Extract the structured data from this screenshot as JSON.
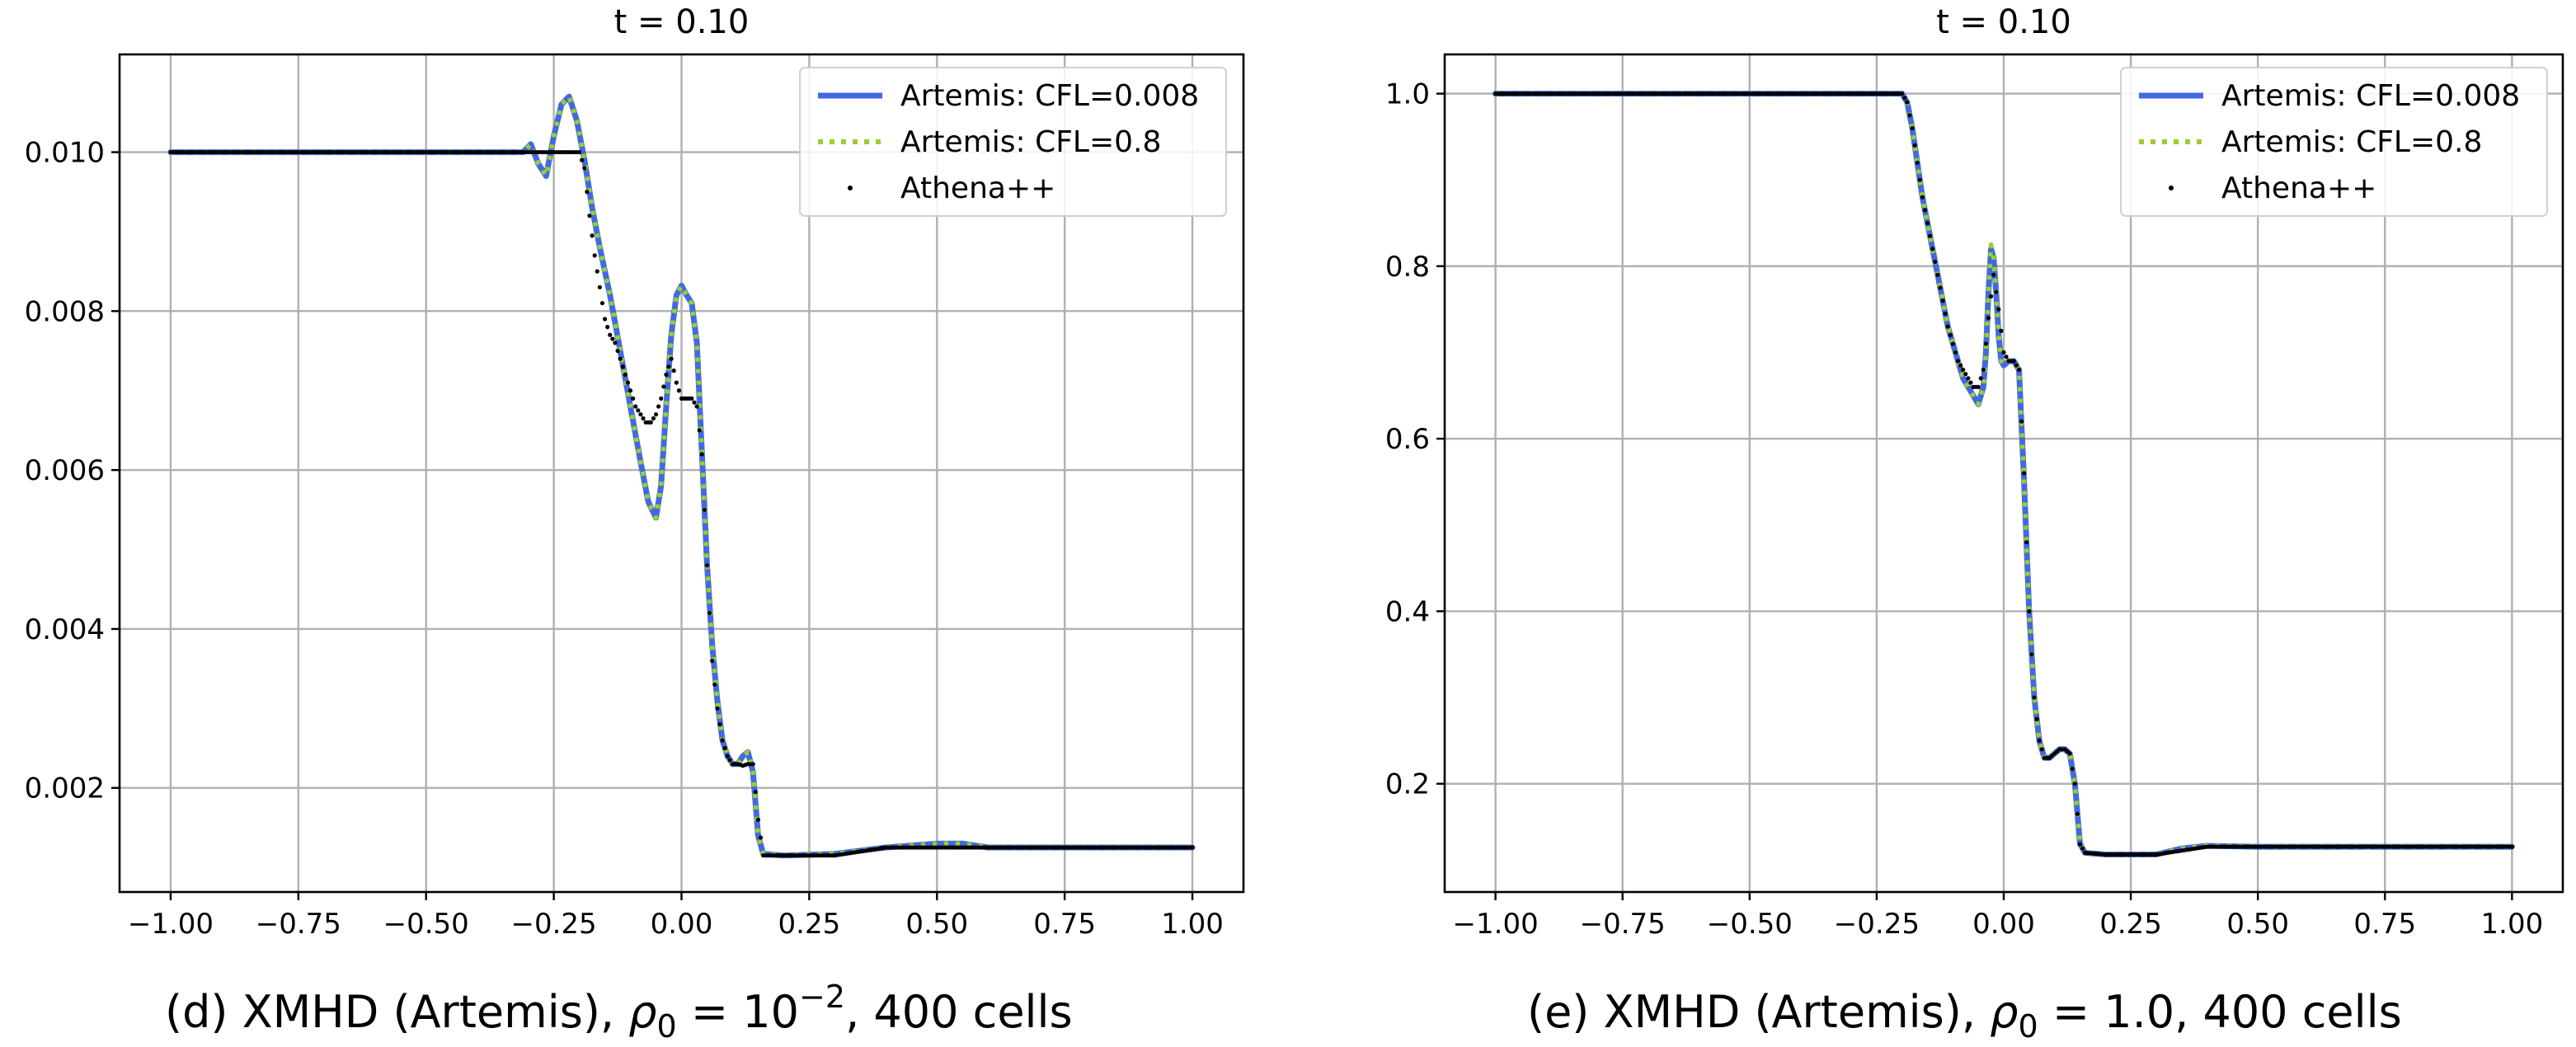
{
  "colors": {
    "artemis_low": "#4169e1",
    "artemis_high": "#9acd32",
    "athena": "#000000"
  },
  "chart_data": [
    {
      "type": "line",
      "title": "t = 0.10",
      "caption": {
        "prefix": "(d) XMHD (Artemis), ",
        "symbol": "ρ",
        "sub": "0",
        "eq": " = 10",
        "sup": "−2",
        "suffix": ", 400 cells"
      },
      "xlim": [
        -1.1,
        1.1
      ],
      "ylim": [
        0.00069,
        0.01123
      ],
      "xticks": [
        -1.0,
        -0.75,
        -0.5,
        -0.25,
        0.0,
        0.25,
        0.5,
        0.75,
        1.0
      ],
      "xtick_labels": [
        "−1.00",
        "−0.75",
        "−0.50",
        "−0.25",
        "0.00",
        "0.25",
        "0.50",
        "0.75",
        "1.00"
      ],
      "yticks": [
        0.002,
        0.004,
        0.006,
        0.008,
        0.01
      ],
      "ytick_labels": [
        "0.002",
        "0.004",
        "0.006",
        "0.008",
        "0.010"
      ],
      "legend": [
        "Artemis: CFL=0.008",
        "Artemis: CFL=0.8",
        "Athena++"
      ],
      "series": [
        {
          "name": "Artemis: CFL=0.008",
          "style": "solid",
          "x": [
            -1.0,
            -0.35,
            -0.31,
            -0.295,
            -0.28,
            -0.265,
            -0.25,
            -0.235,
            -0.22,
            -0.205,
            -0.19,
            -0.175,
            -0.16,
            -0.14,
            -0.12,
            -0.1,
            -0.08,
            -0.065,
            -0.05,
            -0.04,
            -0.03,
            -0.02,
            -0.01,
            0.0,
            0.01,
            0.02,
            0.03,
            0.04,
            0.05,
            0.06,
            0.07,
            0.08,
            0.09,
            0.1,
            0.11,
            0.12,
            0.13,
            0.14,
            0.15,
            0.16,
            0.2,
            0.3,
            0.4,
            0.5,
            0.55,
            0.6,
            0.7,
            0.8,
            1.0
          ],
          "y": [
            0.01,
            0.01,
            0.01,
            0.0101,
            0.00985,
            0.0097,
            0.0102,
            0.0106,
            0.0107,
            0.0104,
            0.0099,
            0.0093,
            0.0088,
            0.0082,
            0.0075,
            0.0068,
            0.0061,
            0.0056,
            0.0054,
            0.0058,
            0.0068,
            0.0077,
            0.0082,
            0.00832,
            0.0082,
            0.0081,
            0.0076,
            0.0062,
            0.0048,
            0.0038,
            0.0031,
            0.0026,
            0.0024,
            0.0023,
            0.0023,
            0.0024,
            0.00245,
            0.0022,
            0.0014,
            0.00117,
            0.00115,
            0.00117,
            0.00125,
            0.0013,
            0.0013,
            0.00125,
            0.00125,
            0.00125,
            0.00125
          ]
        },
        {
          "name": "Artemis: CFL=0.8",
          "style": "dotted",
          "x": [
            -1.0,
            -0.35,
            -0.31,
            -0.295,
            -0.28,
            -0.265,
            -0.25,
            -0.235,
            -0.22,
            -0.205,
            -0.19,
            -0.175,
            -0.16,
            -0.14,
            -0.12,
            -0.1,
            -0.08,
            -0.065,
            -0.05,
            -0.04,
            -0.03,
            -0.02,
            -0.01,
            0.0,
            0.01,
            0.02,
            0.03,
            0.04,
            0.05,
            0.06,
            0.07,
            0.08,
            0.09,
            0.1,
            0.11,
            0.12,
            0.13,
            0.14,
            0.15,
            0.16,
            0.2,
            0.3,
            0.4,
            0.5,
            0.55,
            0.6,
            0.7,
            0.8,
            1.0
          ],
          "y": [
            0.01,
            0.01,
            0.01,
            0.0101,
            0.00985,
            0.0097,
            0.0102,
            0.0106,
            0.0107,
            0.0104,
            0.0099,
            0.0093,
            0.0088,
            0.0082,
            0.0075,
            0.0068,
            0.0061,
            0.0056,
            0.0054,
            0.0058,
            0.0068,
            0.0077,
            0.0082,
            0.00832,
            0.0082,
            0.0081,
            0.0076,
            0.0062,
            0.0048,
            0.0038,
            0.0031,
            0.0026,
            0.0024,
            0.0023,
            0.0023,
            0.0024,
            0.00245,
            0.0022,
            0.0014,
            0.00117,
            0.00115,
            0.00117,
            0.00125,
            0.0013,
            0.0013,
            0.00125,
            0.00125,
            0.00125,
            0.00125
          ]
        },
        {
          "name": "Athena++",
          "style": "points",
          "x": [
            -1.0,
            -0.2,
            -0.19,
            -0.18,
            -0.17,
            -0.16,
            -0.15,
            -0.14,
            -0.13,
            -0.12,
            -0.11,
            -0.1,
            -0.09,
            -0.08,
            -0.07,
            -0.06,
            -0.05,
            -0.04,
            -0.03,
            -0.02,
            -0.01,
            0.0,
            0.01,
            0.02,
            0.03,
            0.04,
            0.05,
            0.06,
            0.07,
            0.08,
            0.09,
            0.1,
            0.11,
            0.12,
            0.13,
            0.14,
            0.15,
            0.16,
            0.18,
            0.3,
            0.4,
            0.5,
            0.7,
            1.0
          ],
          "y": [
            0.01,
            0.01,
            0.0098,
            0.0092,
            0.0087,
            0.0083,
            0.0079,
            0.0077,
            0.0076,
            0.0074,
            0.0072,
            0.007,
            0.0068,
            0.0067,
            0.0066,
            0.0066,
            0.0067,
            0.0069,
            0.0072,
            0.0074,
            0.0071,
            0.0069,
            0.0069,
            0.0069,
            0.0068,
            0.0062,
            0.0048,
            0.0036,
            0.003,
            0.0026,
            0.0024,
            0.0023,
            0.0023,
            0.00228,
            0.0023,
            0.0023,
            0.0016,
            0.00115,
            0.00115,
            0.00115,
            0.00125,
            0.00125,
            0.00125,
            0.00125
          ]
        }
      ]
    },
    {
      "type": "line",
      "title": "t = 0.10",
      "caption": {
        "prefix": "(e) XMHD (Artemis), ",
        "symbol": "ρ",
        "sub": "0",
        "eq": " = 1.0",
        "sup": "",
        "suffix": ", 400 cells"
      },
      "xlim": [
        -1.1,
        1.1
      ],
      "ylim": [
        0.0745,
        1.0455
      ],
      "xticks": [
        -1.0,
        -0.75,
        -0.5,
        -0.25,
        0.0,
        0.25,
        0.5,
        0.75,
        1.0
      ],
      "xtick_labels": [
        "−1.00",
        "−0.75",
        "−0.50",
        "−0.25",
        "0.00",
        "0.25",
        "0.50",
        "0.75",
        "1.00"
      ],
      "yticks": [
        0.2,
        0.4,
        0.6,
        0.8,
        1.0
      ],
      "ytick_labels": [
        "0.2",
        "0.4",
        "0.6",
        "0.8",
        "1.0"
      ],
      "legend": [
        "Artemis: CFL=0.008",
        "Artemis: CFL=0.8",
        "Athena++"
      ],
      "series": [
        {
          "name": "Artemis: CFL=0.008",
          "style": "solid",
          "x": [
            -1.0,
            -0.2,
            -0.19,
            -0.18,
            -0.17,
            -0.16,
            -0.15,
            -0.14,
            -0.13,
            -0.12,
            -0.11,
            -0.1,
            -0.09,
            -0.08,
            -0.07,
            -0.06,
            -0.05,
            -0.04,
            -0.035,
            -0.03,
            -0.025,
            -0.02,
            -0.015,
            -0.01,
            -0.005,
            0.0,
            0.01,
            0.02,
            0.03,
            0.04,
            0.05,
            0.06,
            0.07,
            0.08,
            0.09,
            0.1,
            0.11,
            0.12,
            0.13,
            0.14,
            0.15,
            0.16,
            0.2,
            0.3,
            0.35,
            0.4,
            0.5,
            0.7,
            1.0
          ],
          "y": [
            1.0,
            1.0,
            0.99,
            0.96,
            0.92,
            0.88,
            0.85,
            0.82,
            0.79,
            0.76,
            0.73,
            0.71,
            0.69,
            0.67,
            0.66,
            0.65,
            0.64,
            0.66,
            0.7,
            0.77,
            0.82,
            0.81,
            0.77,
            0.72,
            0.69,
            0.685,
            0.69,
            0.69,
            0.68,
            0.55,
            0.4,
            0.3,
            0.25,
            0.23,
            0.23,
            0.235,
            0.24,
            0.24,
            0.235,
            0.2,
            0.13,
            0.12,
            0.118,
            0.118,
            0.125,
            0.128,
            0.127,
            0.127,
            0.127
          ]
        },
        {
          "name": "Artemis: CFL=0.8",
          "style": "dotted",
          "x": [
            -1.0,
            -0.2,
            -0.19,
            -0.18,
            -0.17,
            -0.16,
            -0.15,
            -0.14,
            -0.13,
            -0.12,
            -0.11,
            -0.1,
            -0.09,
            -0.08,
            -0.07,
            -0.06,
            -0.05,
            -0.04,
            -0.035,
            -0.03,
            -0.025,
            -0.02,
            -0.015,
            -0.01,
            -0.005,
            0.0,
            0.01,
            0.02,
            0.03,
            0.04,
            0.05,
            0.06,
            0.07,
            0.08,
            0.09,
            0.1,
            0.11,
            0.12,
            0.13,
            0.14,
            0.15,
            0.16,
            0.2,
            0.3,
            0.35,
            0.4,
            0.5,
            0.7,
            1.0
          ],
          "y": [
            1.0,
            1.0,
            0.99,
            0.96,
            0.92,
            0.88,
            0.85,
            0.82,
            0.79,
            0.76,
            0.73,
            0.71,
            0.69,
            0.67,
            0.66,
            0.65,
            0.64,
            0.66,
            0.7,
            0.77,
            0.825,
            0.81,
            0.77,
            0.72,
            0.69,
            0.685,
            0.69,
            0.69,
            0.68,
            0.55,
            0.4,
            0.3,
            0.25,
            0.23,
            0.23,
            0.235,
            0.24,
            0.24,
            0.235,
            0.2,
            0.13,
            0.12,
            0.118,
            0.118,
            0.125,
            0.128,
            0.127,
            0.127,
            0.127
          ]
        },
        {
          "name": "Athena++",
          "style": "points",
          "x": [
            -1.0,
            -0.2,
            -0.19,
            -0.18,
            -0.17,
            -0.16,
            -0.15,
            -0.14,
            -0.13,
            -0.12,
            -0.11,
            -0.1,
            -0.09,
            -0.08,
            -0.07,
            -0.06,
            -0.05,
            -0.04,
            -0.03,
            -0.02,
            -0.01,
            0.0,
            0.01,
            0.02,
            0.03,
            0.04,
            0.05,
            0.06,
            0.07,
            0.08,
            0.09,
            0.1,
            0.11,
            0.12,
            0.13,
            0.14,
            0.15,
            0.16,
            0.2,
            0.3,
            0.4,
            0.5,
            0.7,
            1.0
          ],
          "y": [
            1.0,
            1.0,
            0.99,
            0.96,
            0.92,
            0.88,
            0.85,
            0.82,
            0.79,
            0.76,
            0.73,
            0.71,
            0.69,
            0.68,
            0.67,
            0.66,
            0.66,
            0.68,
            0.74,
            0.79,
            0.75,
            0.7,
            0.69,
            0.69,
            0.68,
            0.56,
            0.4,
            0.3,
            0.25,
            0.23,
            0.23,
            0.235,
            0.24,
            0.24,
            0.235,
            0.2,
            0.13,
            0.12,
            0.118,
            0.118,
            0.127,
            0.127,
            0.127,
            0.127
          ]
        }
      ]
    }
  ]
}
